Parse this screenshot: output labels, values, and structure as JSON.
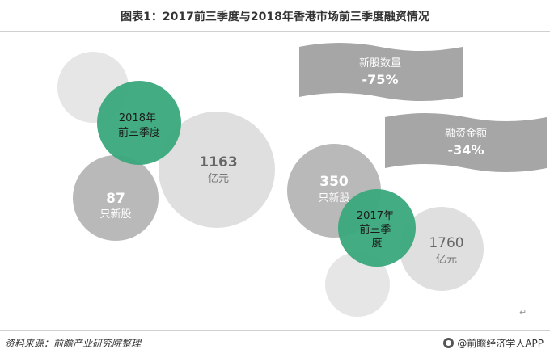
{
  "header": {
    "title": "图表1：2017前三季度与2018年香港市场前三季度融资情况"
  },
  "footer": {
    "source": "资料来源：前瞻产业研究院整理",
    "brand": "@前瞻经济学人APP",
    "brand_icon": "qianzhan-logo-icon"
  },
  "colors": {
    "highlight": "#3aa87c",
    "bubble_gray": "#b3b3b3",
    "bubble_light": "#dcdcdc",
    "banner": "#a6a6a6"
  },
  "chart_data": {
    "type": "bubble",
    "series": [
      {
        "name": "2018年前三季度",
        "ipo_count": 87,
        "ipo_count_unit": "只新股",
        "financing": 1163,
        "financing_unit": "亿元"
      },
      {
        "name": "2017年前三季度",
        "ipo_count": 350,
        "ipo_count_unit": "只新股",
        "financing": 1760,
        "financing_unit": "亿元"
      }
    ],
    "changes": [
      {
        "label": "新股数量",
        "value": "-75%"
      },
      {
        "label": "融资金额",
        "value": "-34%"
      }
    ]
  }
}
